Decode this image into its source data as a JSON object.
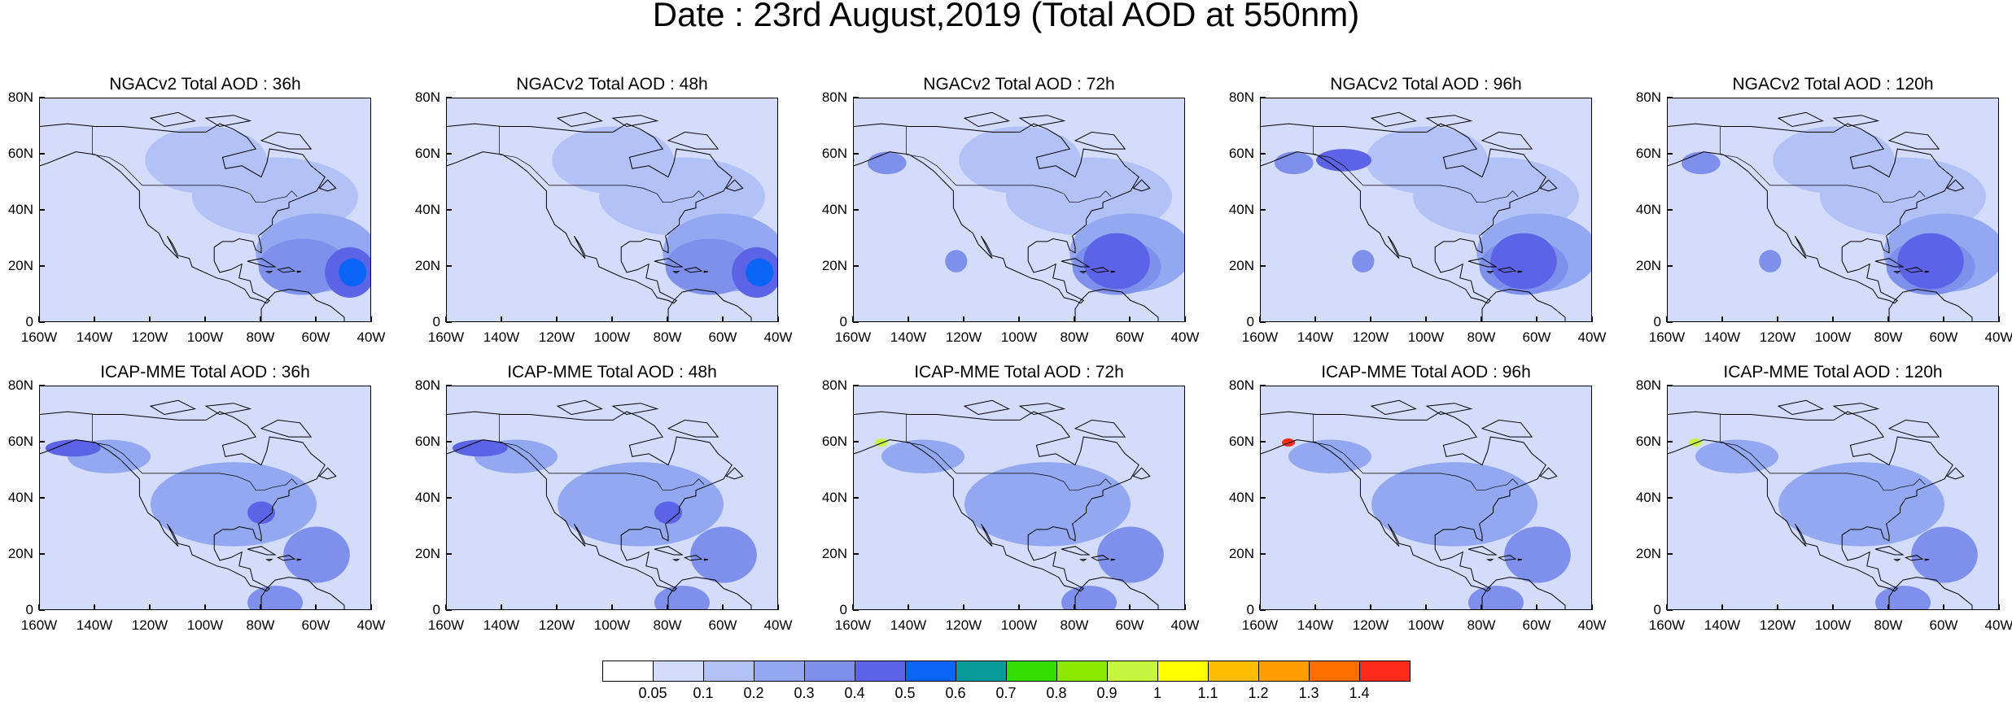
{
  "title": "Date : 23rd August,2019 (Total AOD at 550nm)",
  "y_ticks": [
    "80N",
    "60N",
    "40N",
    "20N",
    "0"
  ],
  "x_ticks": [
    "160W",
    "140W",
    "120W",
    "100W",
    "80W",
    "60W",
    "40W"
  ],
  "rows": [
    {
      "model": "NGACv2",
      "panels": [
        {
          "title": "NGACv2 Total AOD : 36h",
          "hotspot_level": "0.5"
        },
        {
          "title": "NGACv2 Total AOD : 48h",
          "hotspot_level": "0.5"
        },
        {
          "title": "NGACv2 Total AOD : 72h",
          "hotspot_level": "0.4"
        },
        {
          "title": "NGACv2 Total AOD : 96h",
          "hotspot_level": "0.4"
        },
        {
          "title": "NGACv2 Total AOD : 120h",
          "hotspot_level": "0.3"
        }
      ]
    },
    {
      "model": "ICAP-MME",
      "panels": [
        {
          "title": "ICAP-MME Total AOD : 36h",
          "hotspot_level": "0.3"
        },
        {
          "title": "ICAP-MME Total AOD : 48h",
          "hotspot_level": "0.3"
        },
        {
          "title": "ICAP-MME Total AOD : 72h",
          "hotspot_level": "0.9"
        },
        {
          "title": "ICAP-MME Total AOD : 96h",
          "hotspot_level": "1.4"
        },
        {
          "title": "ICAP-MME Total AOD : 120h",
          "hotspot_level": "0.9"
        }
      ]
    }
  ],
  "colorbar": {
    "labels": [
      "0.05",
      "0.1",
      "0.2",
      "0.3",
      "0.4",
      "0.5",
      "0.6",
      "0.7",
      "0.8",
      "0.9",
      "1",
      "1.1",
      "1.2",
      "1.3",
      "1.4"
    ],
    "colors": [
      "#ffffff",
      "#d3dcfb",
      "#b2c1f6",
      "#93a8f1",
      "#7f90ec",
      "#5d63e6",
      "#0a64f5",
      "#089a9a",
      "#33dd00",
      "#8ce800",
      "#c6f740",
      "#ffff00",
      "#ffbd00",
      "#ff9c00",
      "#ff6e00",
      "#ff2a1a"
    ]
  }
}
